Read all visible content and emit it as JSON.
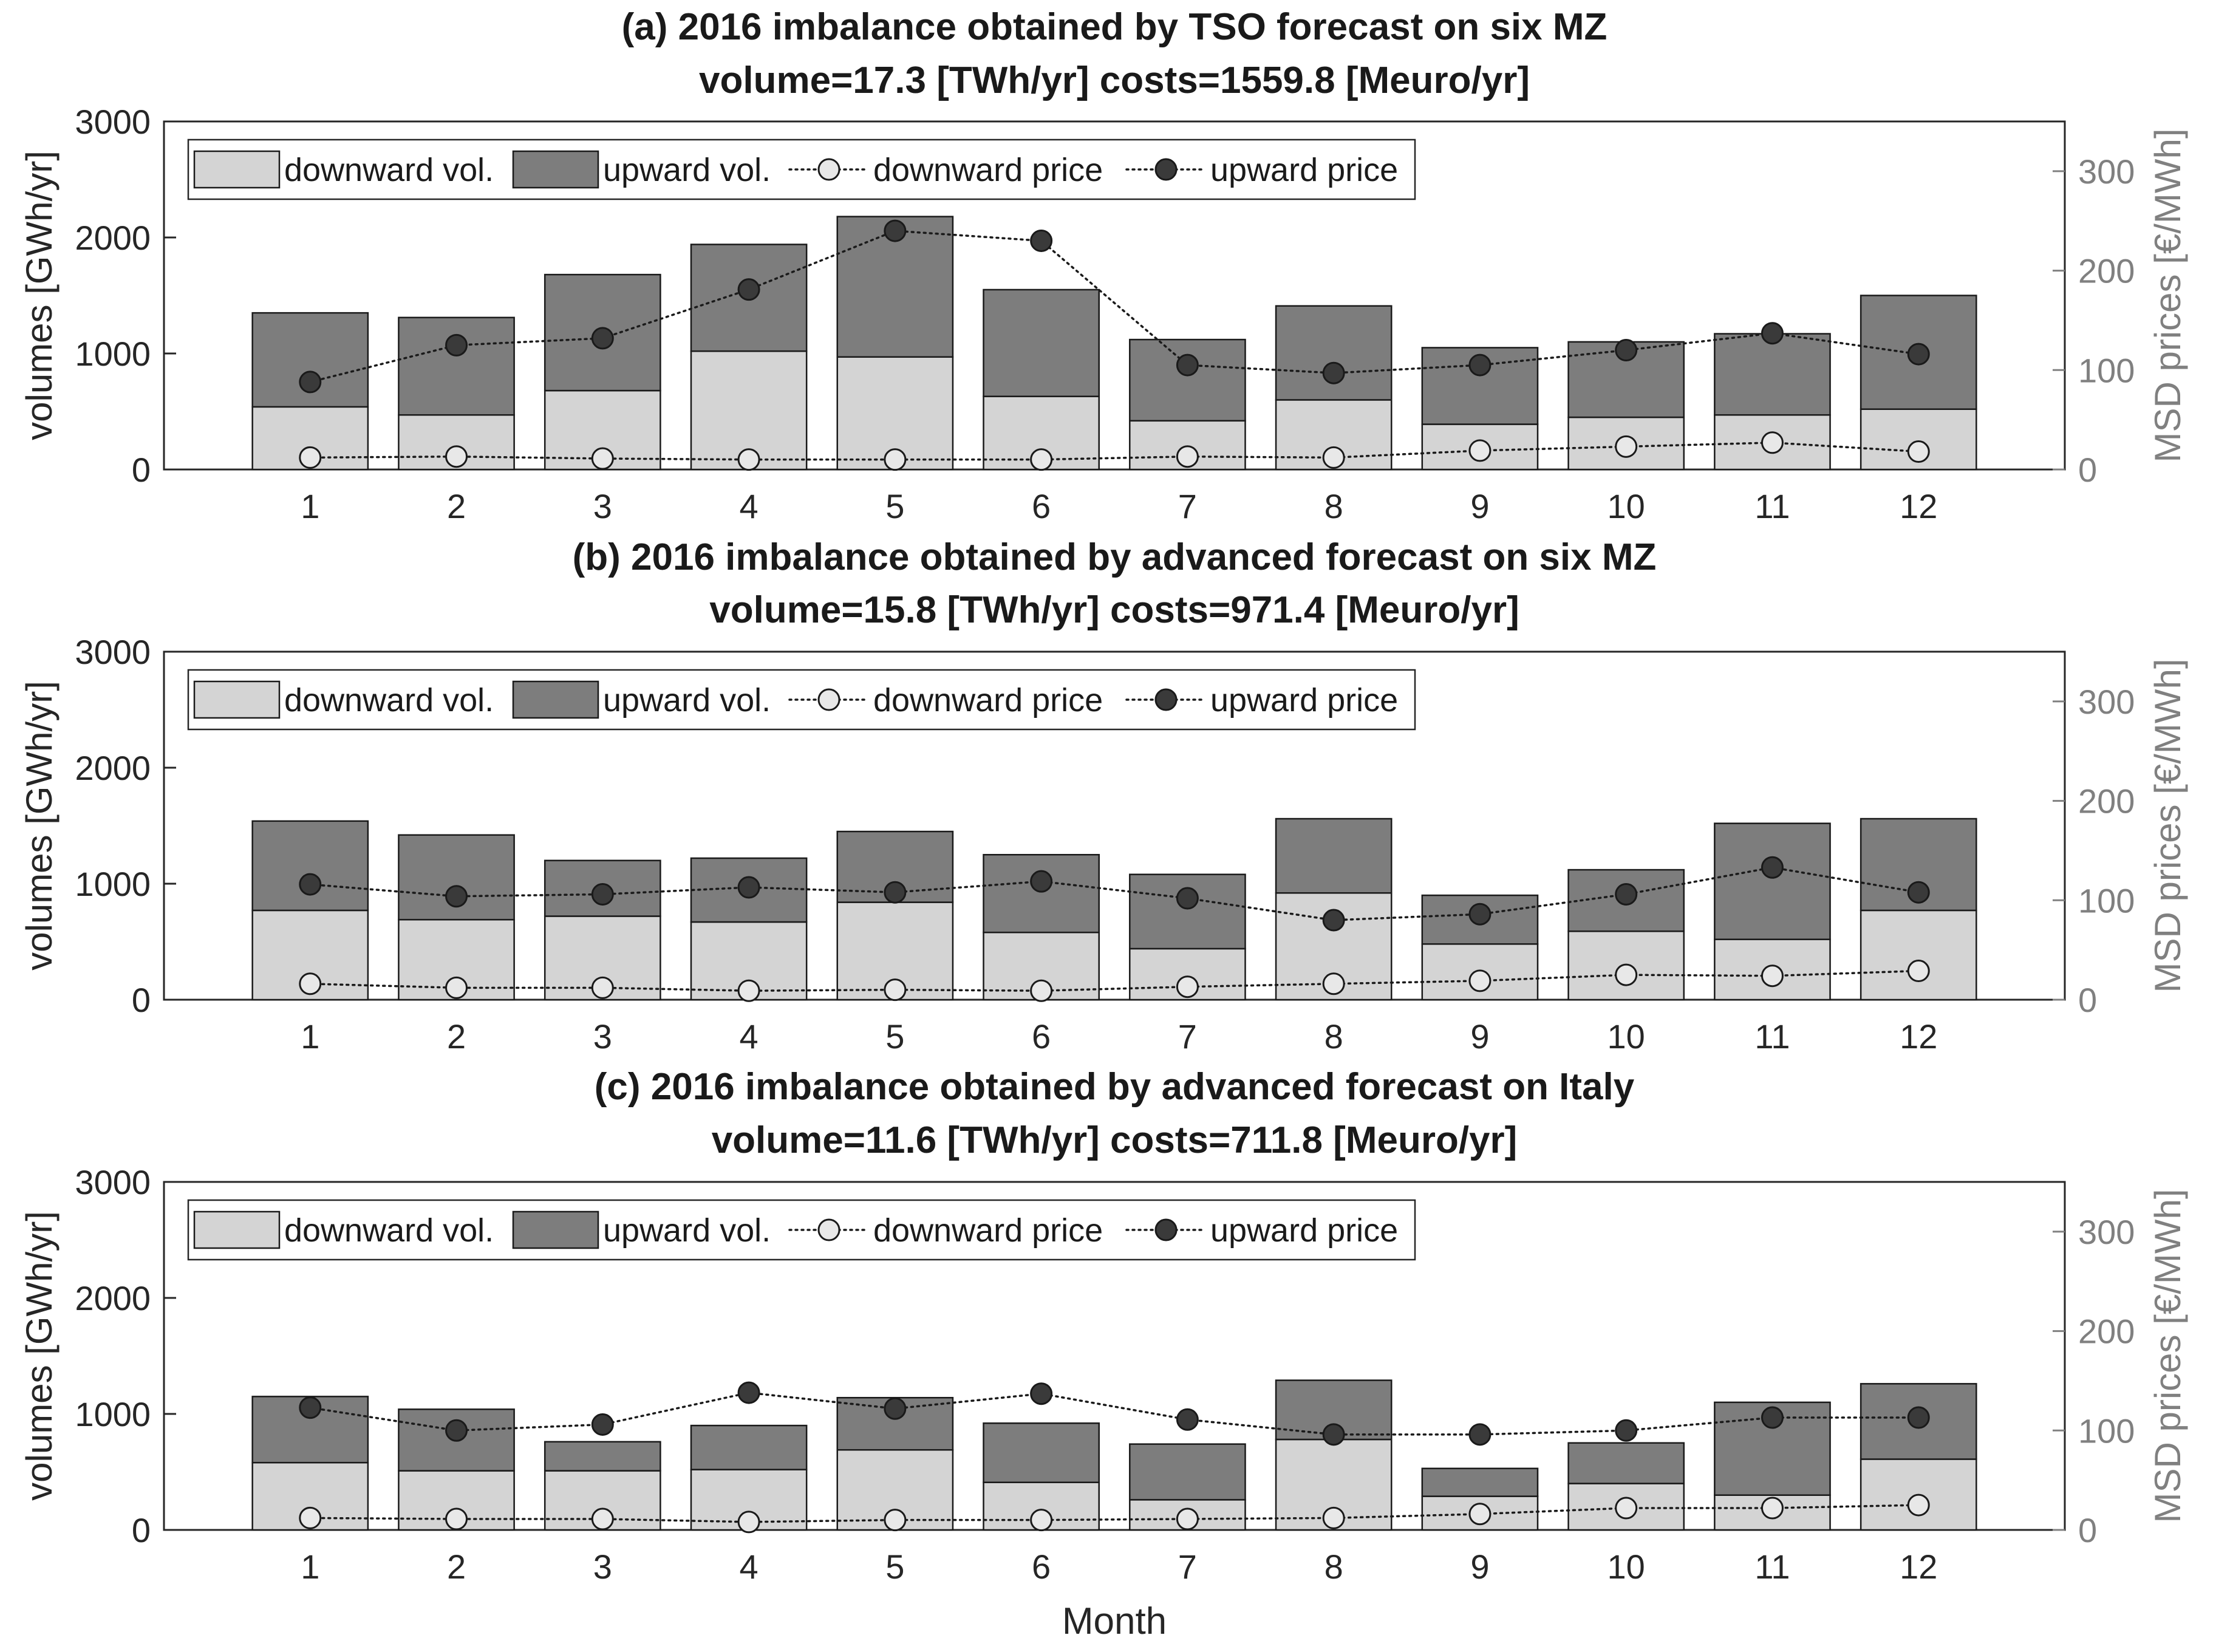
{
  "chart_data": [
    {
      "type": "bar",
      "title_line1": "(a) 2016 imbalance obtained by TSO forecast on six MZ",
      "title_line2": "volume=17.3 [TWh/yr] costs=1559.8 [Meuro/yr]",
      "categories": [
        "1",
        "2",
        "3",
        "4",
        "5",
        "6",
        "7",
        "8",
        "9",
        "10",
        "11",
        "12"
      ],
      "series": [
        {
          "name": "downward vol.",
          "values": [
            540,
            470,
            680,
            1020,
            970,
            630,
            420,
            600,
            390,
            450,
            470,
            520
          ]
        },
        {
          "name": "upward vol.",
          "values": [
            810,
            840,
            1000,
            920,
            1210,
            920,
            700,
            810,
            660,
            650,
            700,
            980
          ]
        },
        {
          "name": "downward price",
          "values": [
            12,
            13,
            11,
            10,
            10,
            10,
            13,
            12,
            19,
            23,
            27,
            18
          ]
        },
        {
          "name": "upward price",
          "values": [
            88,
            125,
            132,
            181,
            240,
            230,
            105,
            97,
            105,
            120,
            137,
            116
          ]
        }
      ],
      "ylabel": "volumes [GWh/yr]",
      "y2label": "MSD prices [€/MWh]",
      "ylim": [
        0,
        3000
      ],
      "y2lim": [
        0,
        350
      ],
      "yticks": [
        "0",
        "1000",
        "2000",
        "3000"
      ],
      "y2ticks": [
        "0",
        "100",
        "200",
        "300"
      ]
    },
    {
      "type": "bar",
      "title_line1": "(b) 2016 imbalance obtained by advanced forecast on six MZ",
      "title_line2": "volume=15.8 [TWh/yr] costs=971.4 [Meuro/yr]",
      "categories": [
        "1",
        "2",
        "3",
        "4",
        "5",
        "6",
        "7",
        "8",
        "9",
        "10",
        "11",
        "12"
      ],
      "series": [
        {
          "name": "downward vol.",
          "values": [
            770,
            690,
            720,
            670,
            840,
            580,
            440,
            920,
            480,
            590,
            520,
            770
          ]
        },
        {
          "name": "upward vol.",
          "values": [
            770,
            730,
            480,
            550,
            610,
            670,
            640,
            640,
            420,
            530,
            1000,
            790
          ]
        },
        {
          "name": "downward price",
          "values": [
            16,
            12,
            12,
            9,
            10,
            9,
            13,
            16,
            19,
            25,
            24,
            29
          ]
        },
        {
          "name": "upward price",
          "values": [
            116,
            104,
            106,
            113,
            108,
            119,
            102,
            80,
            86,
            106,
            133,
            108
          ]
        }
      ],
      "ylabel": "volumes [GWh/yr]",
      "y2label": "MSD prices [€/MWh]",
      "ylim": [
        0,
        3000
      ],
      "y2lim": [
        0,
        350
      ],
      "yticks": [
        "0",
        "1000",
        "2000",
        "3000"
      ],
      "y2ticks": [
        "0",
        "100",
        "200",
        "300"
      ]
    },
    {
      "type": "bar",
      "title_line1": "(c) 2016 imbalance obtained by advanced forecast on Italy",
      "title_line2": "volume=11.6 [TWh/yr] costs=711.8 [Meuro/yr]",
      "categories": [
        "1",
        "2",
        "3",
        "4",
        "5",
        "6",
        "7",
        "8",
        "9",
        "10",
        "11",
        "12"
      ],
      "series": [
        {
          "name": "downward vol.",
          "values": [
            580,
            510,
            510,
            520,
            690,
            410,
            260,
            780,
            290,
            400,
            300,
            610
          ]
        },
        {
          "name": "upward vol.",
          "values": [
            570,
            530,
            250,
            380,
            450,
            510,
            480,
            510,
            240,
            350,
            800,
            650
          ]
        },
        {
          "name": "downward price",
          "values": [
            12,
            11,
            11,
            8,
            10,
            10,
            11,
            12,
            16,
            22,
            22,
            25
          ]
        },
        {
          "name": "upward price",
          "values": [
            123,
            100,
            106,
            138,
            122,
            137,
            111,
            96,
            96,
            100,
            113,
            113
          ]
        }
      ],
      "ylabel": "volumes [GWh/yr]",
      "y2label": "MSD prices [€/MWh]",
      "ylim": [
        0,
        3000
      ],
      "y2lim": [
        0,
        350
      ],
      "yticks": [
        "0",
        "1000",
        "2000",
        "3000"
      ],
      "y2ticks": [
        "0",
        "100",
        "200",
        "300"
      ]
    }
  ],
  "xlabel": "Month",
  "colors": {
    "downward_vol": "#d4d4d4",
    "upward_vol": "#7d7d7d",
    "downward_price_marker": "#e8e8e8",
    "upward_price_marker": "#3a3a3a",
    "axis": "#262626",
    "right_axis": "#808080"
  }
}
